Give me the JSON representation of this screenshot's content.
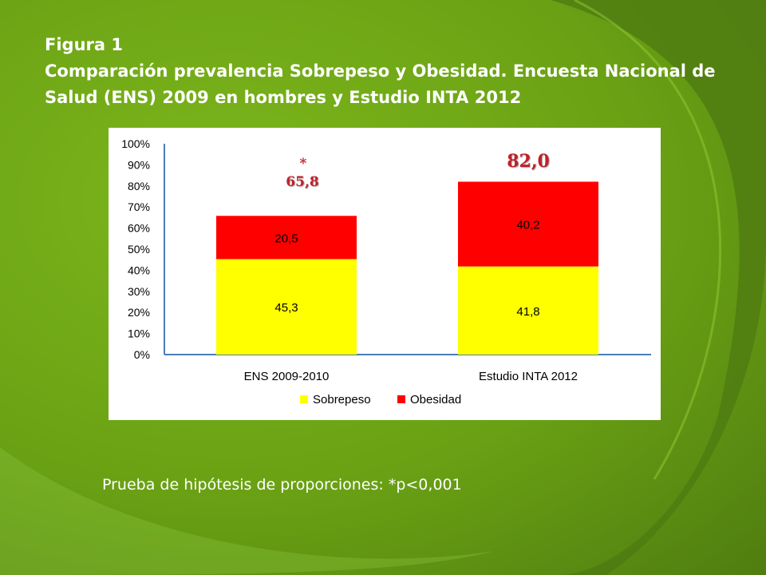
{
  "figure": {
    "label": "Figura 1",
    "title": "Comparación prevalencia Sobrepeso y Obesidad. Encuesta Nacional de Salud (ENS) 2009 en hombres y Estudio INTA 2012"
  },
  "footnote": "Prueba de hipótesis de proporciones: *p<0,001",
  "colors": {
    "sobrepeso": "#ffff00",
    "obesidad": "#ff0000",
    "axis": "#4a7ebb",
    "total_label": "#c0202a",
    "background": "#6aa114"
  },
  "chart_data": {
    "type": "bar",
    "stacked": true,
    "categories": [
      "ENS 2009-2010",
      "Estudio INTA 2012"
    ],
    "series": [
      {
        "name": "Sobrepeso",
        "values": [
          45.3,
          41.8
        ],
        "labels": [
          "45,3",
          "41,8"
        ]
      },
      {
        "name": "Obesidad",
        "values": [
          20.5,
          40.2
        ],
        "labels": [
          "20,5",
          "40,2"
        ]
      }
    ],
    "totals": [
      {
        "value": 65.8,
        "label": "65,8",
        "marker": "*"
      },
      {
        "value": 82.0,
        "label": "82,0",
        "marker": ""
      }
    ],
    "ylim": [
      0,
      100
    ],
    "yticks": [
      "0%",
      "10%",
      "20%",
      "30%",
      "40%",
      "50%",
      "60%",
      "70%",
      "80%",
      "90%",
      "100%"
    ],
    "grid": false,
    "legend_position": "bottom",
    "xlabel": "",
    "ylabel": ""
  }
}
